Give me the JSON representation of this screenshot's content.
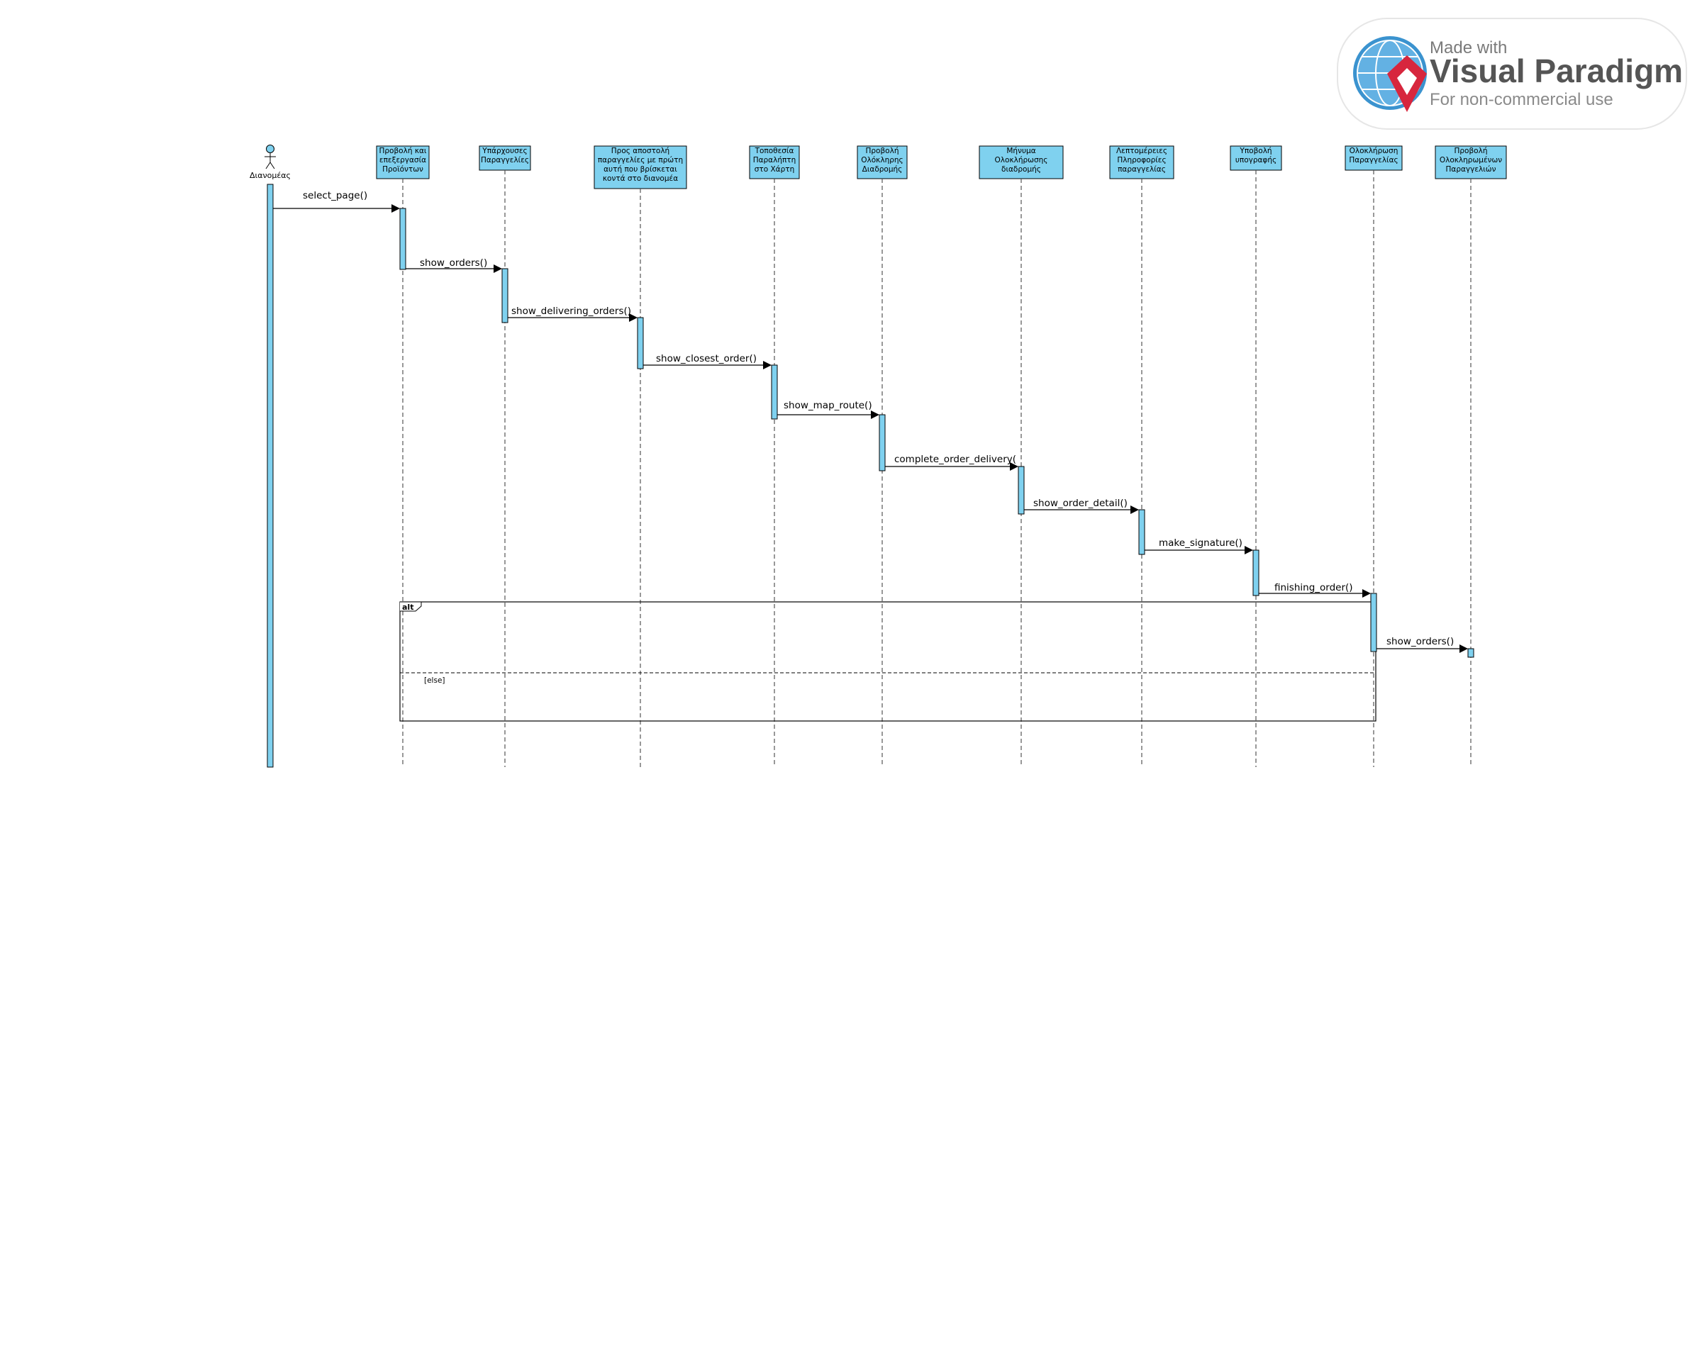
{
  "watermark": {
    "line1": "Made with",
    "line2": "Visual Paradigm",
    "line3": "For non-commercial use"
  },
  "actor": {
    "label": "Διανομέας",
    "color": "#7fd1ef"
  },
  "lifelines": [
    {
      "id": "actor",
      "lines": []
    },
    {
      "id": "L1",
      "lines": [
        "Προβολή και",
        "επεξεργασία",
        "Προϊόντων"
      ]
    },
    {
      "id": "L2",
      "lines": [
        "Υπάρχουσες",
        "Παραγγελίες"
      ]
    },
    {
      "id": "L3",
      "lines": [
        "Προς αποστολή",
        "παραγγελίες με πρώτη",
        "αυτή που βρίσκεται",
        "κοντά στο διανομέα"
      ]
    },
    {
      "id": "L4",
      "lines": [
        "Τοποθεσία",
        "Παραλήπτη",
        "στο Χάρτη"
      ]
    },
    {
      "id": "L5",
      "lines": [
        "Προβολή",
        "Ολόκληρης",
        "Διαδρομής"
      ]
    },
    {
      "id": "L6",
      "lines": [
        "Μήνυμα",
        "Ολοκλήρωσης",
        "διαδρομής"
      ]
    },
    {
      "id": "L7",
      "lines": [
        "Λεπτομέρειες",
        "Πληροφορίες",
        "παραγγελίας"
      ]
    },
    {
      "id": "L8",
      "lines": [
        "Υποβολή",
        "υπογραφής"
      ]
    },
    {
      "id": "L9",
      "lines": [
        "Ολοκλήρωση",
        "Παραγγελίας"
      ]
    },
    {
      "id": "L10",
      "lines": [
        "Προβολή",
        "Ολοκληρωμένων",
        "Παραγγελιών"
      ]
    }
  ],
  "messages": [
    {
      "label": "select_page()",
      "from": 0,
      "to": 1
    },
    {
      "label": "show_orders()",
      "from": 1,
      "to": 2
    },
    {
      "label": "show_delivering_orders()",
      "from": 2,
      "to": 3
    },
    {
      "label": "show_closest_order()",
      "from": 3,
      "to": 4
    },
    {
      "label": "show_map_route()",
      "from": 4,
      "to": 5
    },
    {
      "label": "complete_order_delivery()",
      "from": 5,
      "to": 6
    },
    {
      "label": "show_order_detail()",
      "from": 6,
      "to": 7
    },
    {
      "label": "make_signature()",
      "from": 7,
      "to": 8
    },
    {
      "label": "finishing_order()",
      "from": 8,
      "to": 9
    },
    {
      "label": "show_orders()",
      "from": 9,
      "to": 10
    }
  ],
  "fragment": {
    "operator": "alt",
    "guard_else": "[else]"
  },
  "colors": {
    "lifeline_fill": "#7fd1ef",
    "activation_fill": "#7fd1ef"
  }
}
